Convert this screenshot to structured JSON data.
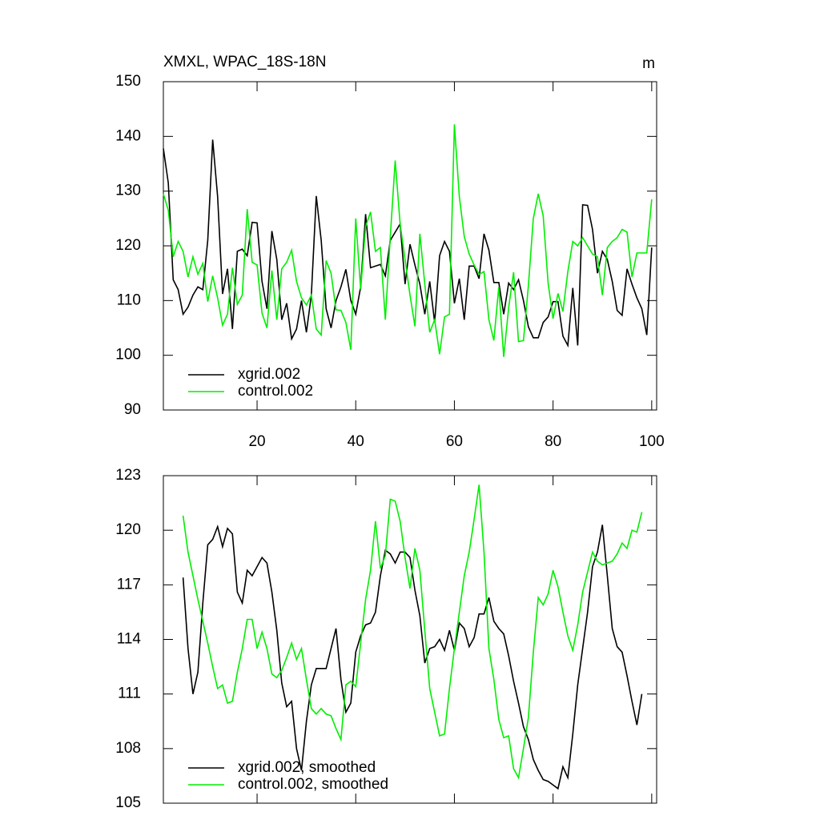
{
  "chart_data": [
    {
      "type": "line",
      "title": "XMXL, WPAC_18S-18N",
      "units": "m",
      "x": [
        1,
        2,
        3,
        4,
        5,
        6,
        7,
        8,
        9,
        10,
        11,
        12,
        13,
        14,
        15,
        16,
        17,
        18,
        19,
        20,
        21,
        22,
        23,
        24,
        25,
        26,
        27,
        28,
        29,
        30,
        31,
        32,
        33,
        34,
        35,
        36,
        37,
        38,
        39,
        40,
        41,
        42,
        43,
        44,
        45,
        46,
        47,
        48,
        49,
        50,
        51,
        52,
        53,
        54,
        55,
        56,
        57,
        58,
        59,
        60,
        61,
        62,
        63,
        64,
        65,
        66,
        67,
        68,
        69,
        70,
        71,
        72,
        73,
        74,
        75,
        76,
        77,
        78,
        79,
        80,
        81,
        82,
        83,
        84,
        85,
        86,
        87,
        88,
        89,
        90,
        91,
        92,
        93,
        94,
        95,
        96,
        97,
        98,
        99,
        100
      ],
      "series": [
        {
          "name": "xgrid.002",
          "color": "#000000",
          "values": [
            137.8,
            131.5,
            113.8,
            112,
            107.5,
            108.8,
            111,
            112.5,
            112,
            121,
            139.4,
            129,
            111.2,
            115.8,
            104.8,
            119,
            119.4,
            118.2,
            124.3,
            124.2,
            113.5,
            108.5,
            122.7,
            117.5,
            106.5,
            109.5,
            103,
            104.8,
            110,
            104.2,
            111,
            129.1,
            121,
            108.5,
            105,
            110,
            112.5,
            115.7,
            110,
            107.5,
            112.5,
            125.8,
            116,
            116.3,
            116.6,
            114.5,
            121,
            122.5,
            124,
            113,
            120.3,
            116.5,
            113,
            107.5,
            113.5,
            106,
            118.2,
            120.8,
            119,
            109.5,
            114,
            106.5,
            116.3,
            116.3,
            114,
            122.2,
            119.2,
            113.3,
            113.3,
            107.5,
            113.2,
            112,
            113.8,
            110,
            105.2,
            103.2,
            103.2,
            106,
            107,
            109.8,
            109.8,
            103.5,
            101.8,
            112.3,
            101.8,
            127.5,
            127.4,
            123,
            115,
            119,
            117.5,
            113.5,
            108.2,
            107.3,
            115.8,
            113,
            110.5,
            108.5,
            103.7,
            119.7
          ]
        },
        {
          "name": "control.002",
          "color": "#00ee00",
          "values": [
            129.5,
            126.5,
            118,
            120.8,
            119,
            114.3,
            118,
            114.8,
            116.8,
            109.8,
            114.5,
            110.5,
            105.5,
            107.5,
            116,
            109.3,
            111,
            126.7,
            117,
            116.5,
            107.7,
            105,
            115.5,
            106.5,
            115.8,
            117,
            119.2,
            113.5,
            110.5,
            109.2,
            111,
            104.8,
            103.7,
            117.3,
            115,
            108.3,
            108.2,
            106,
            101,
            125,
            112,
            123.5,
            126.2,
            119,
            119.7,
            106.5,
            121.6,
            135.6,
            124,
            117.5,
            111,
            105.3,
            122.2,
            113,
            104.2,
            106.5,
            100.2,
            107,
            107.5,
            142.2,
            129,
            121.7,
            118.5,
            116.5,
            114.8,
            115.3,
            106.5,
            102.7,
            112.5,
            99.7,
            108.7,
            115.2,
            102.5,
            102.7,
            112.7,
            125,
            129.5,
            125.5,
            113.2,
            106.7,
            111.3,
            108,
            115.3,
            120.8,
            120,
            121.5,
            120,
            118.5,
            118,
            111,
            119.7,
            120.8,
            121.5,
            123,
            122.5,
            114.3,
            118.7,
            118.7,
            118.7,
            128.5
          ]
        }
      ],
      "xlim": [
        1,
        101
      ],
      "xticks": [
        20,
        40,
        60,
        80,
        100
      ],
      "ylim": [
        90,
        150
      ],
      "yticks": [
        90,
        100,
        110,
        120,
        130,
        140,
        150
      ],
      "show_xtick_labels": true,
      "legend": "lower left"
    },
    {
      "type": "line",
      "x": [
        5,
        6,
        7,
        8,
        9,
        10,
        11,
        12,
        13,
        14,
        15,
        16,
        17,
        18,
        19,
        20,
        21,
        22,
        23,
        24,
        25,
        26,
        27,
        28,
        29,
        30,
        31,
        32,
        33,
        34,
        35,
        36,
        37,
        38,
        39,
        40,
        41,
        42,
        43,
        44,
        45,
        46,
        47,
        48,
        49,
        50,
        51,
        52,
        53,
        54,
        55,
        56,
        57,
        58,
        59,
        60,
        61,
        62,
        63,
        64,
        65,
        66,
        67,
        68,
        69,
        70,
        71,
        72,
        73,
        74,
        75,
        76,
        77,
        78,
        79,
        80,
        81,
        82,
        83,
        84,
        85,
        86,
        87,
        88,
        89,
        90,
        91,
        92,
        93,
        94,
        95,
        96,
        97,
        98
      ],
      "series": [
        {
          "name": "xgrid.002, smoothed",
          "color": "#000000",
          "values": [
            117.4,
            113.5,
            111,
            112.2,
            116,
            119.2,
            119.5,
            120.2,
            119.1,
            120.1,
            119.8,
            116.6,
            116,
            117.8,
            117.5,
            118,
            118.5,
            118.2,
            116.6,
            114.5,
            111.6,
            110.3,
            110.6,
            108,
            106.8,
            109.5,
            111.5,
            112.4,
            112.4,
            112.4,
            113.5,
            114.6,
            111.8,
            110,
            110.5,
            113.3,
            114.2,
            114.8,
            114.9,
            115.5,
            117.5,
            118.9,
            118.7,
            118.2,
            118.8,
            118.8,
            118.5,
            116.7,
            115.3,
            112.7,
            113.5,
            113.6,
            114,
            113.4,
            114.5,
            113.4,
            114.9,
            114.6,
            113.6,
            114.1,
            115.4,
            115.4,
            116.3,
            115,
            114.6,
            114.3,
            113.1,
            111.7,
            110.5,
            109.2,
            108.5,
            107.4,
            106.8,
            106.3,
            106.2,
            106,
            105.8,
            107,
            106.4,
            108.8,
            111.5,
            113.5,
            115.5,
            118,
            118.8,
            120.3,
            117.5,
            114.6,
            113.6,
            113.3,
            112,
            110.6,
            109.3,
            111
          ]
        },
        {
          "name": "control.002, smoothed",
          "color": "#00ee00",
          "values": [
            120.8,
            118.8,
            117.5,
            116.2,
            115,
            113.8,
            112.5,
            111.3,
            111.5,
            110.5,
            110.6,
            112.2,
            113.5,
            115.1,
            115.1,
            113.5,
            114.4,
            113.5,
            112.1,
            111.9,
            112.3,
            113,
            113.8,
            112.9,
            113.5,
            111.8,
            110.2,
            109.9,
            110.2,
            109.9,
            109.8,
            109.1,
            108.5,
            111.5,
            111.7,
            111.4,
            113.8,
            116.2,
            117.8,
            120.5,
            117.9,
            118.6,
            121.7,
            121.6,
            120.5,
            118.5,
            116.8,
            119,
            117.8,
            114.5,
            111.3,
            110,
            108.7,
            108.8,
            111.3,
            113.5,
            115.5,
            117.5,
            118.8,
            120.6,
            122.5,
            118.8,
            113.5,
            111.8,
            109.6,
            108.6,
            108.7,
            106.9,
            106.4,
            108,
            109.7,
            113.3,
            116.3,
            115.9,
            116.5,
            117.8,
            116.9,
            115.5,
            114.2,
            113.4,
            114.8,
            116.6,
            117.7,
            118.8,
            118.3,
            118.1,
            118.2,
            118.3,
            118.7,
            119.3,
            119,
            120,
            119.9,
            121
          ]
        }
      ],
      "xlim": [
        1,
        101
      ],
      "xticks": [
        20,
        40,
        60,
        80,
        100
      ],
      "ylim": [
        105,
        123
      ],
      "yticks": [
        105,
        108,
        111,
        114,
        117,
        120,
        123
      ],
      "show_xtick_labels": false,
      "legend": "lower left"
    }
  ]
}
